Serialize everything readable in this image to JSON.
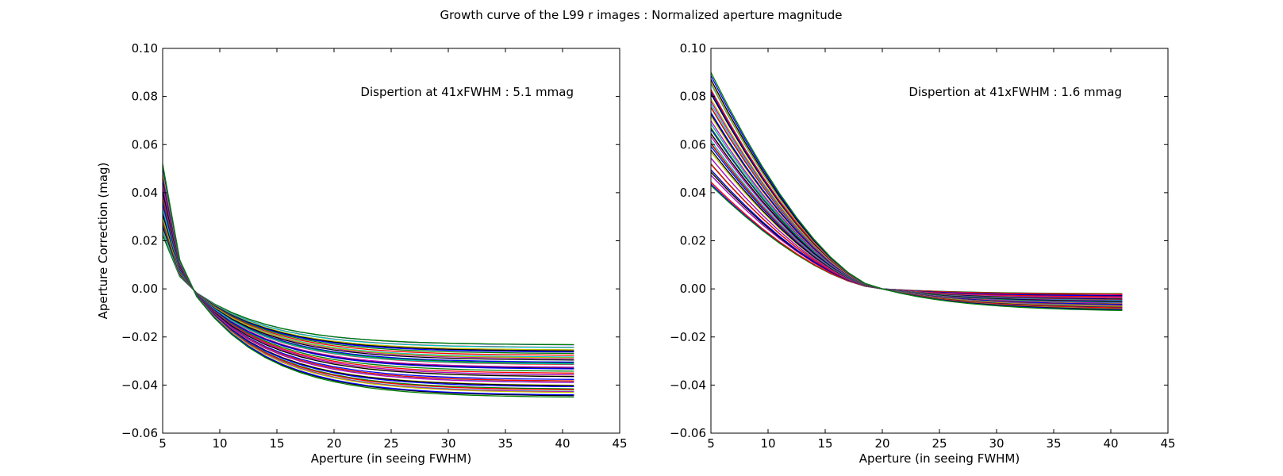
{
  "figure_title": "Growth curve of the L99 r images : Normalized aperture magnitude",
  "chart_data": [
    {
      "type": "line",
      "xlabel": "Aperture (in seeing FWHM)",
      "ylabel": "Aperture Correction (mag)",
      "xlim": [
        5,
        45
      ],
      "ylim": [
        -0.06,
        0.1
      ],
      "xticks": [
        "5",
        "10",
        "15",
        "20",
        "25",
        "30",
        "35",
        "40",
        "45"
      ],
      "yticks": [
        "−0.06",
        "−0.04",
        "−0.02",
        "0.00",
        "0.02",
        "0.04",
        "0.06",
        "0.08",
        "0.10"
      ],
      "grid": false,
      "annotation": "Dispertion at 41xFWHM : 5.1 mmag",
      "x": [
        5,
        6.5,
        8,
        9.5,
        11,
        12.5,
        14,
        15.5,
        17,
        18.5,
        20,
        21.5,
        23,
        24.5,
        26,
        27.5,
        29,
        30.5,
        32,
        33.5,
        35,
        36.5,
        38,
        39.5,
        41
      ],
      "normalized_at": 7.5,
      "series_count": 44,
      "y_start_range": [
        0.022,
        0.052
      ],
      "y_end_range": [
        -0.045,
        -0.023
      ],
      "color_cycle": [
        "#0000ff",
        "#008000",
        "#ff0000",
        "#00bfbf",
        "#bf00bf",
        "#bfbf00",
        "#000000"
      ]
    },
    {
      "type": "line",
      "xlabel": "Aperture (in seeing FWHM)",
      "ylabel": "",
      "xlim": [
        5,
        45
      ],
      "ylim": [
        -0.06,
        0.1
      ],
      "xticks": [
        "5",
        "10",
        "15",
        "20",
        "25",
        "30",
        "35",
        "40",
        "45"
      ],
      "yticks": [
        "−0.06",
        "−0.04",
        "−0.02",
        "0.00",
        "0.02",
        "0.04",
        "0.06",
        "0.08",
        "0.10"
      ],
      "grid": false,
      "annotation": "Dispertion at 41xFWHM : 1.6 mmag",
      "x": [
        5,
        6.5,
        8,
        9.5,
        11,
        12.5,
        14,
        15.5,
        17,
        18.5,
        20,
        21.5,
        23,
        24.5,
        26,
        27.5,
        29,
        30.5,
        32,
        33.5,
        35,
        36.5,
        38,
        39.5,
        41
      ],
      "normalized_at": 20,
      "series_count": 44,
      "y_start_range": [
        0.043,
        0.09
      ],
      "y_end_range": [
        -0.009,
        -0.002
      ],
      "color_cycle": [
        "#0000ff",
        "#008000",
        "#ff0000",
        "#00bfbf",
        "#bf00bf",
        "#bfbf00",
        "#000000"
      ]
    }
  ]
}
